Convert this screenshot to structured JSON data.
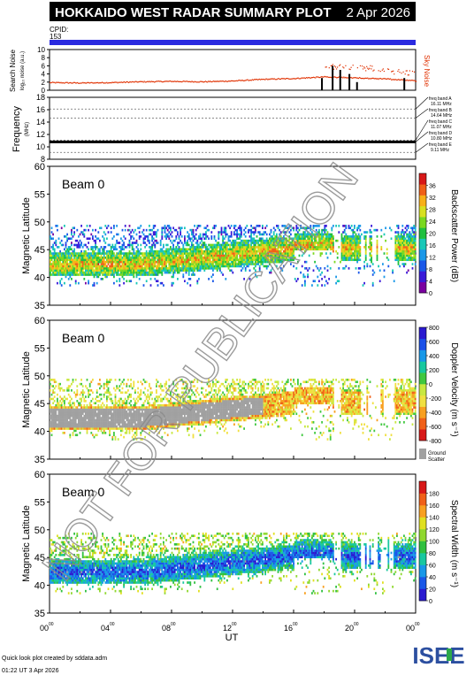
{
  "header": {
    "title": "HOKKAIDO WEST RADAR SUMMARY PLOT",
    "date": "2 Apr 2026",
    "cpid_label": "CPID:",
    "cpid_value": "153"
  },
  "footer": {
    "credit": "Quick look plot created by sddata.adm",
    "timestamp": "01:22 UT  3 Apr 2026",
    "logo_text": "ISEE"
  },
  "watermark": "NOT FOR PUBLICATION",
  "colors": {
    "cpid_bar": "#2a2ae0",
    "noise": "#e03000",
    "ground_scatter": "#a0a0a0"
  },
  "chart_data": [
    {
      "type": "scatter",
      "panel": "noise",
      "ylabel_lines": [
        "Search Noise",
        "log₁₀ noise (a.u.)"
      ],
      "ylim": [
        0,
        10
      ],
      "yticks": [
        "0",
        "2",
        "4",
        "6",
        "8",
        "10"
      ],
      "right_label": "Sky Noise",
      "x_hours": [
        0,
        2,
        4,
        6,
        8,
        10,
        12,
        14,
        16,
        17,
        18,
        19,
        20,
        21,
        22,
        23,
        24
      ],
      "search_noise": [
        2.0,
        1.9,
        2.0,
        2.2,
        2.3,
        2.2,
        2.4,
        2.8,
        3.0,
        3.2,
        3.4,
        3.3,
        3.2,
        3.0,
        2.9,
        2.7,
        2.4
      ],
      "sky_noise": [
        null,
        null,
        null,
        null,
        null,
        null,
        null,
        null,
        null,
        null,
        5.5,
        6.0,
        5.8,
        5.5,
        5.0,
        4.6,
        4.2
      ]
    },
    {
      "type": "line",
      "panel": "frequency",
      "ylabel_lines": [
        "Frequency",
        "(MHz)"
      ],
      "ylim": [
        8,
        18
      ],
      "yticks": [
        "8",
        "10",
        "12",
        "14",
        "16",
        "18"
      ],
      "bands": [
        {
          "label": "freq band A",
          "value": "16.11 MHz",
          "mhz": 16.11
        },
        {
          "label": "freq band B",
          "value": "14.64 MHz",
          "mhz": 14.64
        },
        {
          "label": "freq band C",
          "value": "11.07 MHz",
          "mhz": 11.07
        },
        {
          "label": "freq band D",
          "value": "10.80 MHz",
          "mhz": 10.8
        },
        {
          "label": "freq band E",
          "value": "9.11 MHz",
          "mhz": 9.11
        }
      ],
      "operating_mhz": 10.8
    },
    {
      "type": "heatmap",
      "panel": "power",
      "beam_label": "Beam  0",
      "ylabel": "Magnetic Latitude",
      "ylim": [
        35,
        60
      ],
      "yticks": [
        "35",
        "40",
        "45",
        "50",
        "55",
        "60"
      ],
      "colorbar_label": "Backscatter Power (dB)",
      "colorbar_ticks": [
        "0",
        "4",
        "8",
        "12",
        "16",
        "20",
        "24",
        "28",
        "32",
        "36"
      ],
      "colorbar_range": [
        0,
        36
      ]
    },
    {
      "type": "heatmap",
      "panel": "velocity",
      "beam_label": "Beam  0",
      "ylabel": "Magnetic Latitude",
      "ylim": [
        35,
        60
      ],
      "yticks": [
        "35",
        "40",
        "45",
        "50",
        "55",
        "60"
      ],
      "colorbar_label": "Doppler Velocity (m s⁻¹)",
      "colorbar_ticks": [
        "-800",
        "-600",
        "-400",
        "-200",
        "0",
        "200",
        "400",
        "600",
        "800"
      ],
      "colorbar_range": [
        -800,
        800
      ],
      "ground_scatter_label": [
        "Ground",
        "Scatter"
      ]
    },
    {
      "type": "heatmap",
      "panel": "width",
      "beam_label": "Beam  0",
      "ylabel": "Magnetic Latitude",
      "ylim": [
        35,
        60
      ],
      "yticks": [
        "35",
        "40",
        "45",
        "50",
        "55",
        "60"
      ],
      "colorbar_label": "Spectral Width (m s⁻¹)",
      "colorbar_ticks": [
        "0",
        "20",
        "40",
        "60",
        "80",
        "100",
        "120",
        "140",
        "160",
        "180"
      ],
      "colorbar_range": [
        0,
        180
      ]
    }
  ],
  "x_axis": {
    "label": "UT",
    "ticks": [
      {
        "h": "00",
        "m": "00"
      },
      {
        "h": "04",
        "m": "00"
      },
      {
        "h": "08",
        "m": "00"
      },
      {
        "h": "12",
        "m": "00"
      },
      {
        "h": "16",
        "m": "00"
      },
      {
        "h": "20",
        "m": "00"
      },
      {
        "h": "00",
        "m": "00"
      }
    ]
  }
}
